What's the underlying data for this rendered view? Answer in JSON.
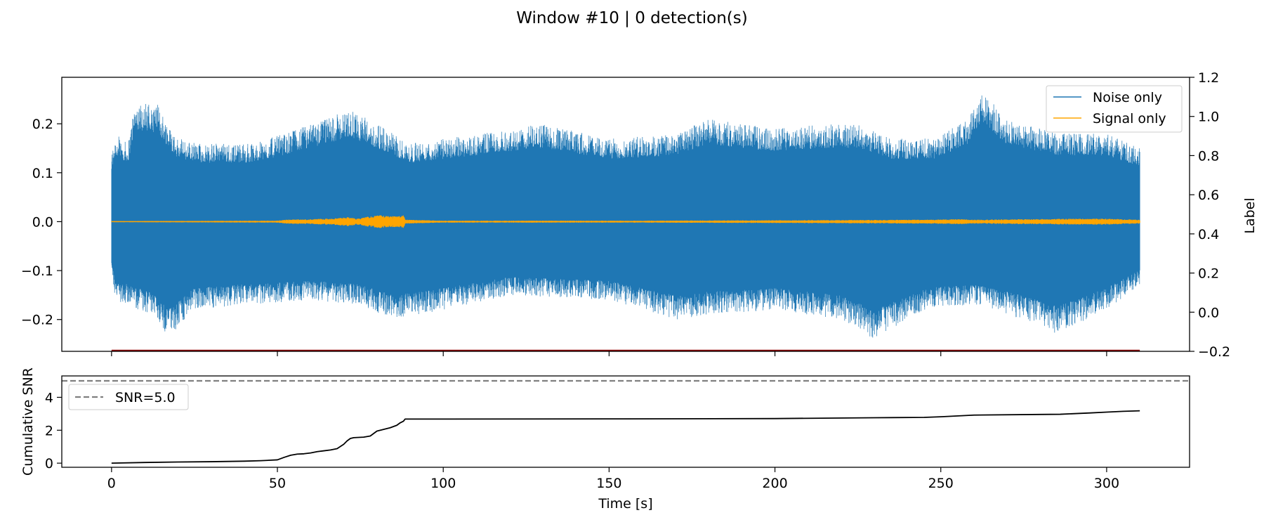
{
  "figure": {
    "title": "Window #10 | 0 detection(s)"
  },
  "colors": {
    "noise": "#1f77b4",
    "signal": "#ffa500",
    "label_line": "#8b0000",
    "snr": "#000000",
    "threshold": "#808080"
  },
  "chart_data": [
    {
      "type": "line",
      "name": "waveform",
      "title": "",
      "xlabel": "",
      "ylabel": "",
      "y2label": "Label",
      "xlim": [
        -15,
        325
      ],
      "ylim": [
        -0.265,
        0.295
      ],
      "y2lim": [
        -0.2,
        1.2
      ],
      "xticks": [
        0,
        50,
        100,
        150,
        200,
        250,
        300
      ],
      "yticks": [
        {
          "v": 0.2,
          "label": "0.2"
        },
        {
          "v": 0.1,
          "label": "0.1"
        },
        {
          "v": 0.0,
          "label": "0.0"
        },
        {
          "v": -0.1,
          "label": "−0.1"
        },
        {
          "v": -0.2,
          "label": "−0.2"
        }
      ],
      "y2ticks": [
        {
          "v": 1.2,
          "label": "1.2"
        },
        {
          "v": 1.0,
          "label": "1.0"
        },
        {
          "v": 0.8,
          "label": "0.8"
        },
        {
          "v": 0.6,
          "label": "0.6"
        },
        {
          "v": 0.4,
          "label": "0.4"
        },
        {
          "v": 0.2,
          "label": "0.2"
        },
        {
          "v": 0.0,
          "label": "0.0"
        },
        {
          "v": -0.2,
          "label": "−0.2"
        }
      ],
      "legend": {
        "placement": "upper-right",
        "entries": [
          "Noise only",
          "Signal only"
        ]
      },
      "series": [
        {
          "name": "Noise only",
          "x_range": [
            0,
            310
          ],
          "envelope_top": [
            [
              0,
              0.14
            ],
            [
              1,
              0.18
            ],
            [
              5,
              0.16
            ],
            [
              7,
              0.25
            ],
            [
              14,
              0.24
            ],
            [
              20,
              0.17
            ],
            [
              28,
              0.16
            ],
            [
              43,
              0.16
            ],
            [
              60,
              0.2
            ],
            [
              72,
              0.23
            ],
            [
              90,
              0.16
            ],
            [
              110,
              0.18
            ],
            [
              130,
              0.2
            ],
            [
              150,
              0.17
            ],
            [
              170,
              0.18
            ],
            [
              180,
              0.21
            ],
            [
              200,
              0.19
            ],
            [
              215,
              0.2
            ],
            [
              225,
              0.2
            ],
            [
              235,
              0.17
            ],
            [
              248,
              0.17
            ],
            [
              258,
              0.21
            ],
            [
              262,
              0.27
            ],
            [
              270,
              0.21
            ],
            [
              285,
              0.18
            ],
            [
              300,
              0.18
            ],
            [
              310,
              0.15
            ]
          ],
          "envelope_bottom": [
            [
              0,
              -0.1
            ],
            [
              1,
              -0.16
            ],
            [
              5,
              -0.17
            ],
            [
              14,
              -0.2
            ],
            [
              17,
              -0.24
            ],
            [
              25,
              -0.18
            ],
            [
              40,
              -0.17
            ],
            [
              60,
              -0.16
            ],
            [
              75,
              -0.17
            ],
            [
              85,
              -0.2
            ],
            [
              100,
              -0.18
            ],
            [
              120,
              -0.15
            ],
            [
              150,
              -0.16
            ],
            [
              170,
              -0.2
            ],
            [
              180,
              -0.19
            ],
            [
              200,
              -0.18
            ],
            [
              220,
              -0.2
            ],
            [
              230,
              -0.24
            ],
            [
              245,
              -0.18
            ],
            [
              260,
              -0.17
            ],
            [
              275,
              -0.2
            ],
            [
              285,
              -0.23
            ],
            [
              300,
              -0.18
            ],
            [
              310,
              -0.13
            ]
          ]
        },
        {
          "name": "Signal only",
          "x_range": [
            0,
            310
          ],
          "amplitude": [
            [
              0,
              0.001
            ],
            [
              50,
              0.002
            ],
            [
              52,
              0.004
            ],
            [
              60,
              0.005
            ],
            [
              68,
              0.007
            ],
            [
              70,
              0.009
            ],
            [
              72,
              0.009
            ],
            [
              74,
              0.006
            ],
            [
              78,
              0.011
            ],
            [
              81,
              0.013
            ],
            [
              84,
              0.011
            ],
            [
              86,
              0.011
            ],
            [
              88,
              0.014
            ],
            [
              88.5,
              0.004
            ],
            [
              100,
              0.002
            ],
            [
              160,
              0.002
            ],
            [
              210,
              0.003
            ],
            [
              245,
              0.004
            ],
            [
              255,
              0.005
            ],
            [
              260,
              0.004
            ],
            [
              290,
              0.006
            ],
            [
              300,
              0.006
            ],
            [
              310,
              0.004
            ]
          ]
        },
        {
          "name": "label",
          "axis": "y2",
          "x": [
            0,
            310
          ],
          "y": [
            -0.2,
            -0.2
          ]
        }
      ]
    },
    {
      "type": "line",
      "name": "cumulative-snr",
      "title": "",
      "xlabel": "Time [s]",
      "ylabel": "Cumulative SNR",
      "xlim": [
        -15,
        325
      ],
      "ylim": [
        -0.25,
        5.3
      ],
      "xticks": [
        0,
        50,
        100,
        150,
        200,
        250,
        300
      ],
      "xticklabels": [
        "0",
        "50",
        "100",
        "150",
        "200",
        "250",
        "300"
      ],
      "yticks": [
        {
          "v": 4,
          "label": "4"
        },
        {
          "v": 2,
          "label": "2"
        },
        {
          "v": 0,
          "label": "0"
        }
      ],
      "legend": {
        "placement": "upper-left",
        "entries": [
          "SNR=5.0"
        ]
      },
      "threshold": 5.0,
      "series": [
        {
          "name": "cumulative SNR",
          "x": [
            0,
            10,
            20,
            30,
            40,
            45,
            50,
            52,
            54,
            56,
            58,
            60,
            62,
            64,
            66,
            68,
            70,
            71,
            72,
            73,
            74,
            76,
            78,
            80,
            82,
            84,
            86,
            87,
            88,
            88.5,
            100,
            150,
            200,
            230,
            245,
            250,
            260,
            280,
            286,
            295,
            300,
            305,
            310
          ],
          "y": [
            0.0,
            0.04,
            0.07,
            0.09,
            0.12,
            0.15,
            0.2,
            0.35,
            0.48,
            0.55,
            0.57,
            0.62,
            0.7,
            0.75,
            0.8,
            0.88,
            1.15,
            1.35,
            1.5,
            1.55,
            1.56,
            1.58,
            1.65,
            1.95,
            2.05,
            2.15,
            2.3,
            2.45,
            2.55,
            2.68,
            2.68,
            2.69,
            2.71,
            2.76,
            2.78,
            2.82,
            2.92,
            2.96,
            2.97,
            3.05,
            3.1,
            3.15,
            3.18
          ]
        }
      ]
    }
  ]
}
